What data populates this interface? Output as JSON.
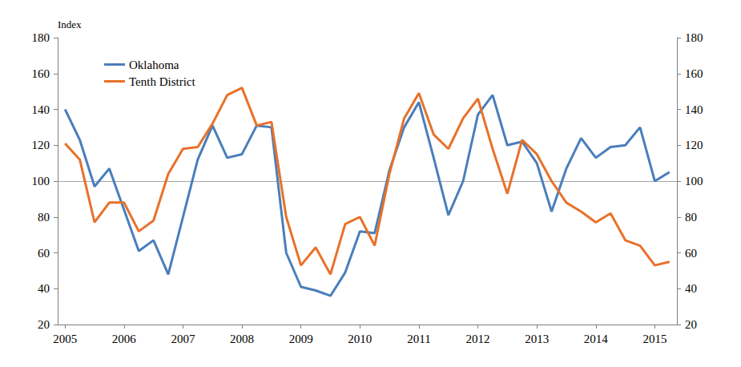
{
  "chart_data": {
    "type": "line",
    "ylabel": "Index",
    "categories": [
      "2005",
      null,
      null,
      null,
      "2006",
      null,
      null,
      null,
      "2007",
      null,
      null,
      null,
      "2008",
      null,
      null,
      null,
      "2009",
      null,
      null,
      null,
      "2010",
      null,
      null,
      null,
      "2011",
      null,
      null,
      null,
      "2012",
      null,
      null,
      null,
      "2013",
      null,
      null,
      null,
      "2014",
      null,
      null,
      null,
      "2015",
      null
    ],
    "series": [
      {
        "name": "Oklahoma",
        "color": "#4a7ebb",
        "values": [
          140,
          123,
          97,
          107,
          84,
          61,
          67,
          48,
          80,
          112,
          131,
          113,
          115,
          131,
          130,
          60,
          41,
          39,
          36,
          49,
          72,
          71,
          106,
          130,
          144,
          113,
          81,
          100,
          137,
          148,
          120,
          122,
          110,
          83,
          107,
          124,
          113,
          119,
          120,
          130,
          100,
          105
        ]
      },
      {
        "name": "Tenth District",
        "color": "#e8712a",
        "values": [
          121,
          112,
          77,
          88,
          88,
          72,
          78,
          104,
          118,
          119,
          132,
          148,
          152,
          131,
          133,
          80,
          53,
          63,
          48,
          76,
          80,
          64,
          104,
          135,
          149,
          126,
          118,
          135,
          146,
          118,
          93,
          123,
          115,
          100,
          88,
          83,
          77,
          82,
          67,
          64,
          53,
          55
        ]
      }
    ],
    "baseline": 100,
    "ylim": [
      20,
      180
    ],
    "yticks": [
      20,
      40,
      60,
      80,
      100,
      120,
      140,
      160,
      180
    ],
    "y2lim": [
      20,
      180
    ],
    "y2ticks": [
      20,
      40,
      60,
      80,
      100,
      120,
      140,
      160,
      180
    ],
    "grid": false,
    "legend": "upper left"
  }
}
